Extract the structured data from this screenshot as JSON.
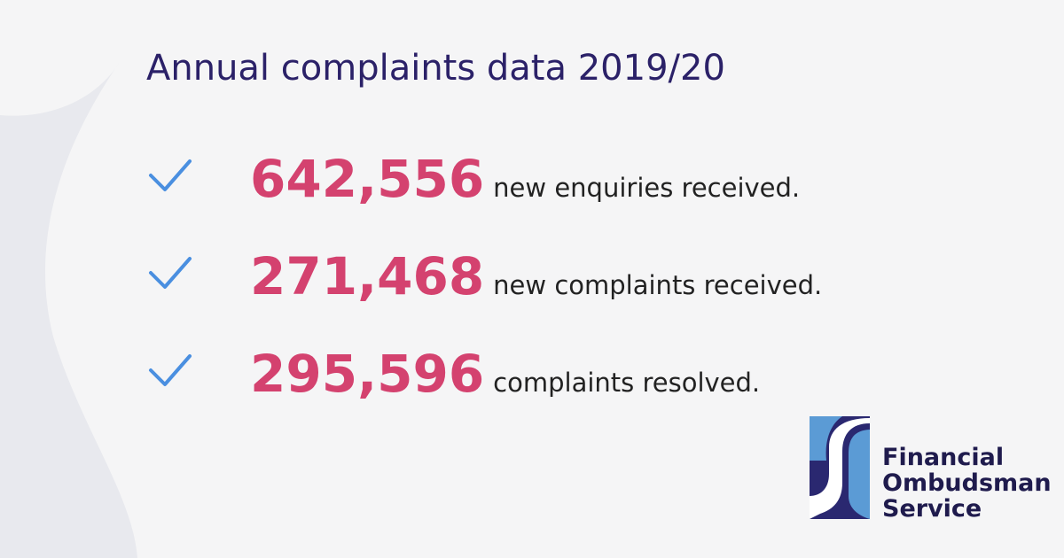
{
  "header": {
    "title": "Annual complaints data 2019/20"
  },
  "items": [
    {
      "number": "642,556",
      "text": "new enquiries received."
    },
    {
      "number": "271,468",
      "text": "new complaints received."
    },
    {
      "number": "295,596",
      "text": "complaints resolved."
    }
  ],
  "logo": {
    "lines": [
      "Financial",
      "Ombudsman",
      "Service"
    ]
  }
}
